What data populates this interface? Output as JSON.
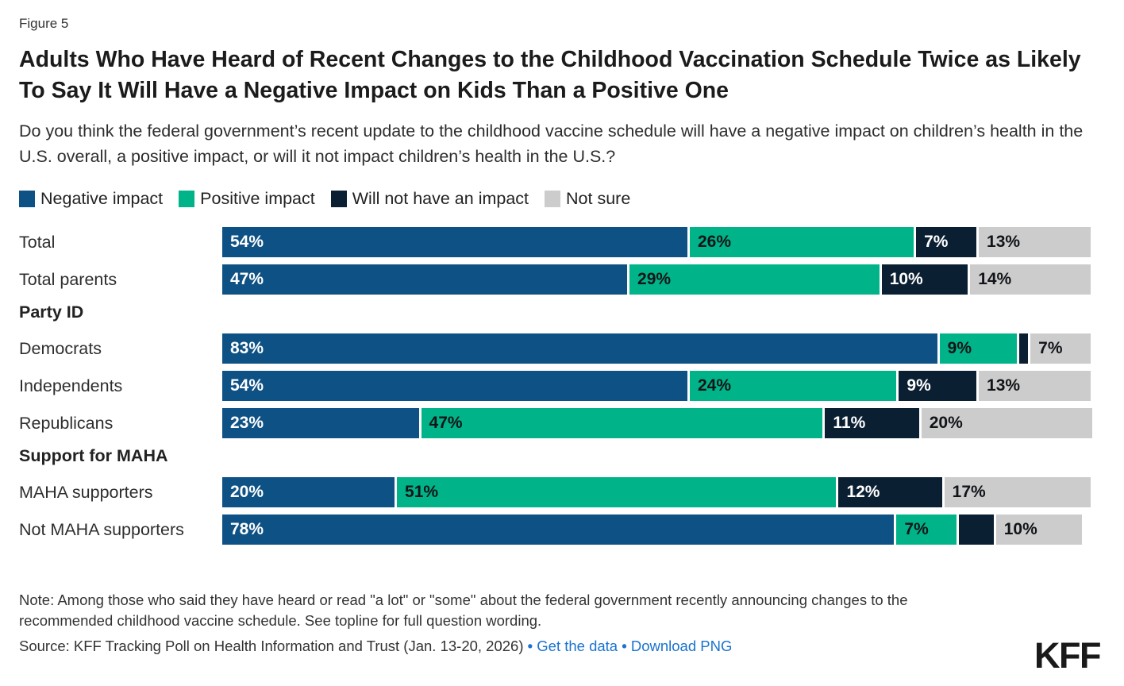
{
  "figure_label": "Figure 5",
  "title": "Adults Who Have Heard of Recent Changes to the Childhood Vaccination Schedule Twice as Likely To Say It Will Have a Negative Impact on Kids Than a Positive One",
  "subtitle": "Do you think the federal government’s recent update to the childhood vaccine schedule will have a negative impact on children’s health in the U.S. overall, a positive impact, or will it not impact children’s health in the U.S.?",
  "colors": {
    "series": [
      {
        "key": "negative-impact",
        "fill": "#0e5184",
        "text": "#ffffff"
      },
      {
        "key": "positive-impact",
        "fill": "#00b388",
        "text": "#111418"
      },
      {
        "key": "no-impact",
        "fill": "#0b1f33",
        "text": "#ffffff"
      },
      {
        "key": "not-sure",
        "fill": "#cccccc",
        "text": "#111418"
      }
    ],
    "link": "#1a73cf"
  },
  "legend": [
    {
      "label": "Negative impact"
    },
    {
      "label": "Positive impact"
    },
    {
      "label": "Will not have an impact"
    },
    {
      "label": "Not sure"
    }
  ],
  "chart_data": {
    "type": "bar",
    "stacked": true,
    "orientation": "horizontal",
    "scale_max": 101,
    "series_names": [
      "Negative impact",
      "Positive impact",
      "Will not have an impact",
      "Not sure"
    ],
    "rows": [
      {
        "kind": "bar",
        "label": "Total",
        "values": [
          54,
          26,
          7,
          13
        ],
        "labels": [
          "54%",
          "26%",
          "7%",
          "13%"
        ]
      },
      {
        "kind": "bar",
        "label": "Total parents",
        "values": [
          47,
          29,
          10,
          14
        ],
        "labels": [
          "47%",
          "29%",
          "10%",
          "14%"
        ]
      },
      {
        "kind": "section",
        "label": "Party ID"
      },
      {
        "kind": "bar",
        "label": "Democrats",
        "values": [
          83,
          9,
          1,
          7
        ],
        "labels": [
          "83%",
          "9%",
          "",
          "7%"
        ]
      },
      {
        "kind": "bar",
        "label": "Independents",
        "values": [
          54,
          24,
          9,
          13
        ],
        "labels": [
          "54%",
          "24%",
          "9%",
          "13%"
        ]
      },
      {
        "kind": "bar",
        "label": "Republicans",
        "values": [
          23,
          47,
          11,
          20
        ],
        "labels": [
          "23%",
          "47%",
          "11%",
          "20%"
        ]
      },
      {
        "kind": "section",
        "label": "Support for MAHA"
      },
      {
        "kind": "bar",
        "label": "MAHA supporters",
        "values": [
          20,
          51,
          12,
          17
        ],
        "labels": [
          "20%",
          "51%",
          "12%",
          "17%"
        ]
      },
      {
        "kind": "bar",
        "label": "Not MAHA supporters",
        "values": [
          78,
          7,
          4,
          10
        ],
        "labels": [
          "78%",
          "7%",
          "",
          "10%"
        ]
      }
    ]
  },
  "note": "Note: Among those who said they have heard or read \"a lot\" or \"some\" about the federal government recently announcing changes to the recommended childhood vaccine schedule. See topline for full question wording.",
  "source": {
    "text": "Source: KFF Tracking Poll on Health Information and Trust (Jan. 13-20, 2026)",
    "bullet": "•",
    "link1": "Get the data",
    "link2": "Download PNG"
  },
  "logo_text": "KFF"
}
